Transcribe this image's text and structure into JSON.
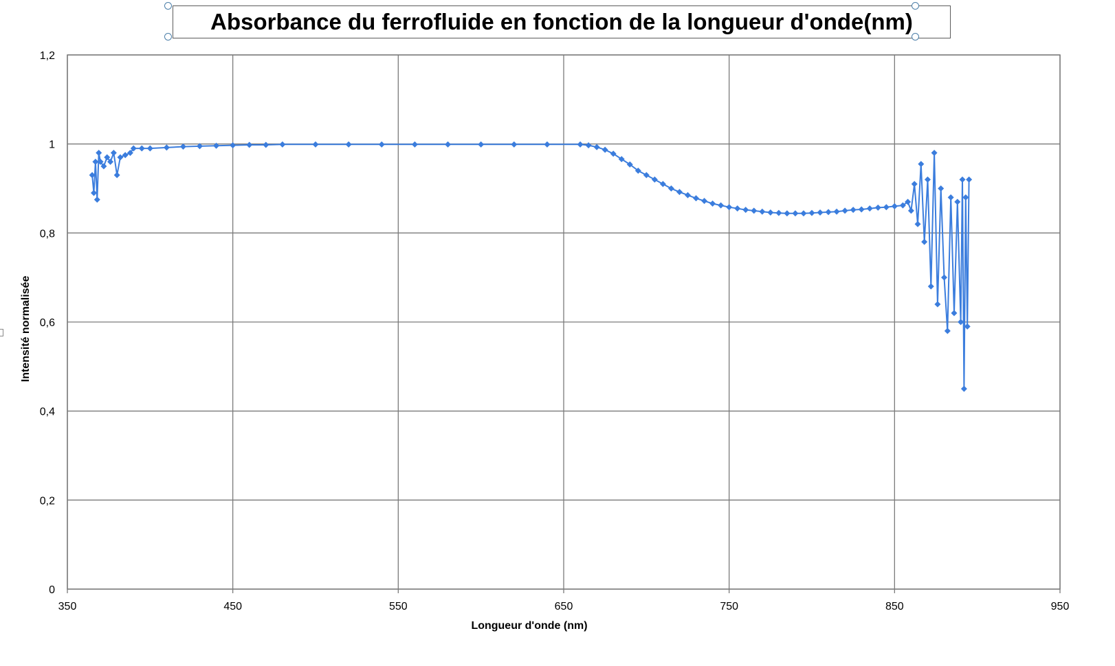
{
  "chart_data": {
    "type": "scatter",
    "title": "Absorbance du ferrofluide en fonction de la longueur d'onde(nm)",
    "xlabel": "Longueur d'onde (nm)",
    "ylabel": "Intensité normalisée",
    "xlim": [
      350,
      950
    ],
    "ylim": [
      0,
      1.2
    ],
    "x_ticks": [
      350,
      450,
      550,
      650,
      750,
      850,
      950
    ],
    "y_ticks": [
      0,
      0.2,
      0.4,
      0.6,
      0.8,
      1,
      1.2
    ],
    "x_tick_labels": [
      "350",
      "450",
      "550",
      "650",
      "750",
      "850",
      "950"
    ],
    "y_tick_labels": [
      "0",
      "0,2",
      "0,4",
      "0,6",
      "0,8",
      "1",
      "1,2"
    ],
    "grid": true,
    "legend": "none",
    "marker": "diamond",
    "line": "connected",
    "color": "#3b7ddd",
    "series": [
      {
        "x": [
          365,
          366,
          367,
          368,
          369,
          370,
          372,
          374,
          376,
          378,
          380,
          382,
          385,
          388,
          390,
          395,
          400,
          410,
          420,
          430,
          440,
          450,
          460,
          470,
          480,
          500,
          520,
          540,
          560,
          580,
          600,
          620,
          640,
          660,
          665,
          670,
          675,
          680,
          685,
          690,
          695,
          700,
          705,
          710,
          715,
          720,
          725,
          730,
          735,
          740,
          745,
          750,
          755,
          760,
          765,
          770,
          775,
          780,
          785,
          790,
          795,
          800,
          805,
          810,
          815,
          820,
          825,
          830,
          835,
          840,
          845,
          850,
          855,
          858,
          860,
          862,
          864,
          866,
          868,
          870,
          872,
          874,
          876,
          878,
          880,
          882,
          884,
          886,
          888,
          890,
          891,
          892,
          893,
          894,
          895
        ],
        "y": [
          0.93,
          0.89,
          0.96,
          0.875,
          0.98,
          0.96,
          0.95,
          0.97,
          0.96,
          0.98,
          0.93,
          0.97,
          0.975,
          0.98,
          0.99,
          0.99,
          0.99,
          0.992,
          0.994,
          0.995,
          0.996,
          0.997,
          0.998,
          0.998,
          0.999,
          0.999,
          0.999,
          0.999,
          0.999,
          0.999,
          0.999,
          0.999,
          0.999,
          0.999,
          0.997,
          0.993,
          0.987,
          0.978,
          0.966,
          0.954,
          0.94,
          0.93,
          0.92,
          0.91,
          0.9,
          0.892,
          0.885,
          0.878,
          0.872,
          0.866,
          0.862,
          0.858,
          0.855,
          0.852,
          0.85,
          0.848,
          0.846,
          0.845,
          0.844,
          0.844,
          0.844,
          0.845,
          0.846,
          0.847,
          0.848,
          0.85,
          0.852,
          0.853,
          0.855,
          0.857,
          0.858,
          0.86,
          0.862,
          0.87,
          0.85,
          0.91,
          0.82,
          0.955,
          0.78,
          0.92,
          0.68,
          0.98,
          0.64,
          0.9,
          0.7,
          0.58,
          0.88,
          0.62,
          0.87,
          0.6,
          0.92,
          0.45,
          0.88,
          0.59,
          0.92
        ]
      }
    ]
  }
}
